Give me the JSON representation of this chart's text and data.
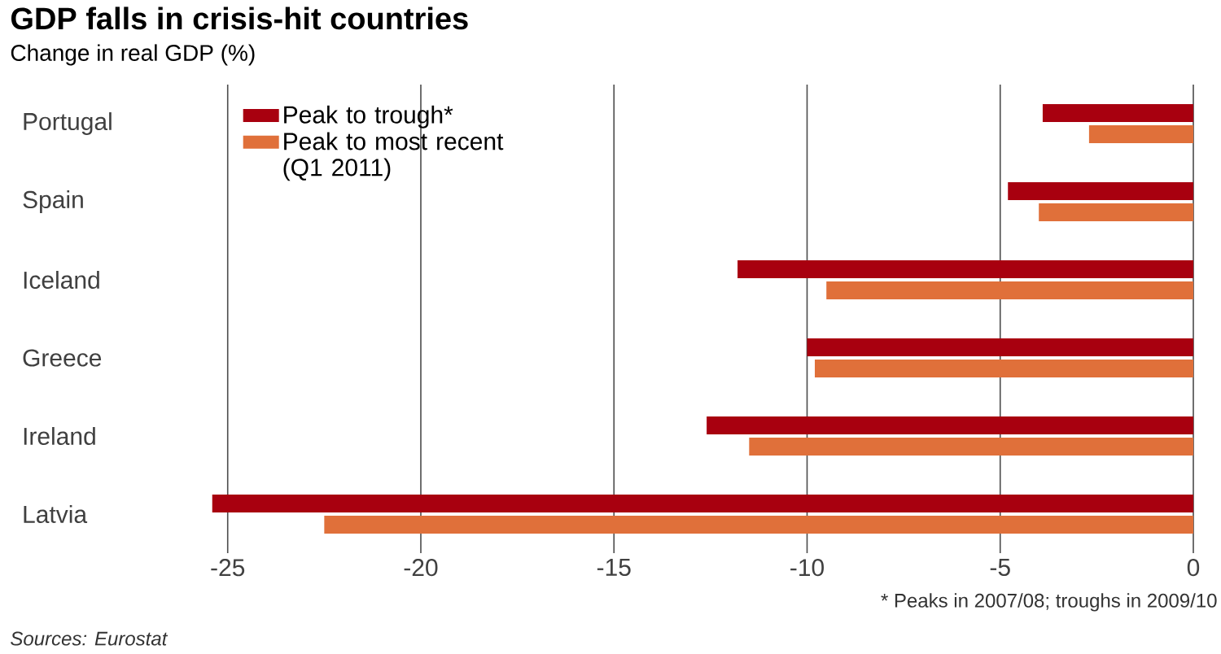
{
  "chart_data": {
    "type": "bar",
    "orientation": "horizontal",
    "title": "GDP falls in crisis-hit countries",
    "subtitle": "Change in real GDP (%)",
    "categories": [
      "Portugal",
      "Spain",
      "Iceland",
      "Greece",
      "Ireland",
      "Latvia"
    ],
    "series": [
      {
        "name": "Peak to trough*",
        "color": "#a8000f",
        "values": [
          -3.9,
          -4.8,
          -11.8,
          -10.0,
          -12.6,
          -25.4
        ]
      },
      {
        "name": "Peak to most recent (Q1 2011)",
        "color": "#e0703a",
        "values": [
          -2.7,
          -4.0,
          -9.5,
          -9.8,
          -11.5,
          -22.5
        ]
      }
    ],
    "xlim": [
      -25.5,
      0
    ],
    "xticks": [
      -25,
      -20,
      -15,
      -10,
      -5,
      0
    ],
    "grid": "x",
    "legend": "top left",
    "annotations": [
      "* Peaks in 2007/08; troughs in 2009/10",
      "Sources: Eurostat"
    ]
  }
}
